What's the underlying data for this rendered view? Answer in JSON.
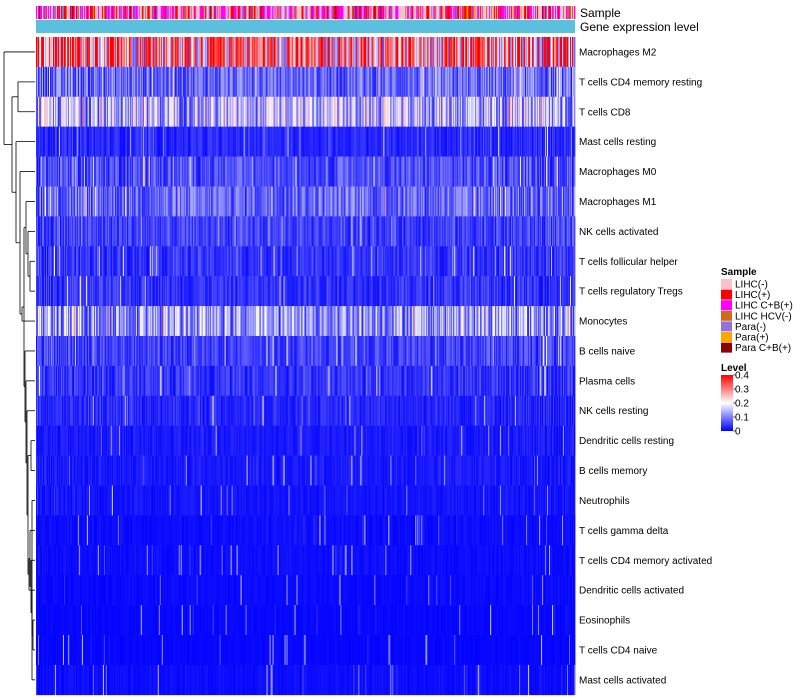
{
  "chart_data": {
    "type": "heatmap",
    "title": "",
    "annotation_tracks": [
      "Sample",
      "Gene expression level"
    ],
    "row_labels": [
      "Macrophages M2",
      "T cells CD4 memory resting",
      "T cells CD8",
      "Mast cells resting",
      "Macrophages M0",
      "Macrophages M1",
      "NK cells activated",
      "T cells follicular helper",
      "T cells regulatory  Tregs",
      "Monocytes",
      "B cells naive",
      "Plasma cells",
      "NK cells resting",
      "Dendritic cells resting",
      "B cells memory",
      "Neutrophils",
      "T cells gamma delta",
      "T cells CD4 memory activated",
      "Dendritic cells activated",
      "Eosinophils",
      "T cells CD4 naive",
      "Mast cells activated"
    ],
    "row_mean_level": [
      0.3,
      0.08,
      0.14,
      0.03,
      0.06,
      0.08,
      0.05,
      0.04,
      0.04,
      0.12,
      0.05,
      0.04,
      0.03,
      0.02,
      0.02,
      0.015,
      0.01,
      0.01,
      0.008,
      0.006,
      0.005,
      0.01
    ],
    "sample_legend": {
      "title": "Sample",
      "entries": [
        {
          "label": "LIHC(-)",
          "color": "#ffc0cb"
        },
        {
          "label": "LIHC(+)",
          "color": "#ff0000"
        },
        {
          "label": "LIHC C+B(+)",
          "color": "#ff00ff"
        },
        {
          "label": "LIHC HCV(-)",
          "color": "#d2691e"
        },
        {
          "label": "Para(-)",
          "color": "#9370db"
        },
        {
          "label": "Para(+)",
          "color": "#ffa500"
        },
        {
          "label": "Para C+B(+)",
          "color": "#8b0000"
        }
      ]
    },
    "level_legend": {
      "title": "Level",
      "ticks": [
        "0.4",
        "0.3",
        "0.2",
        "0.1",
        "0"
      ],
      "range": [
        0,
        0.4
      ],
      "colors": [
        "#0000ff",
        "#ffffff",
        "#ff0000"
      ]
    },
    "gene_expression_color": "#5bc0de",
    "n_samples": 540
  }
}
